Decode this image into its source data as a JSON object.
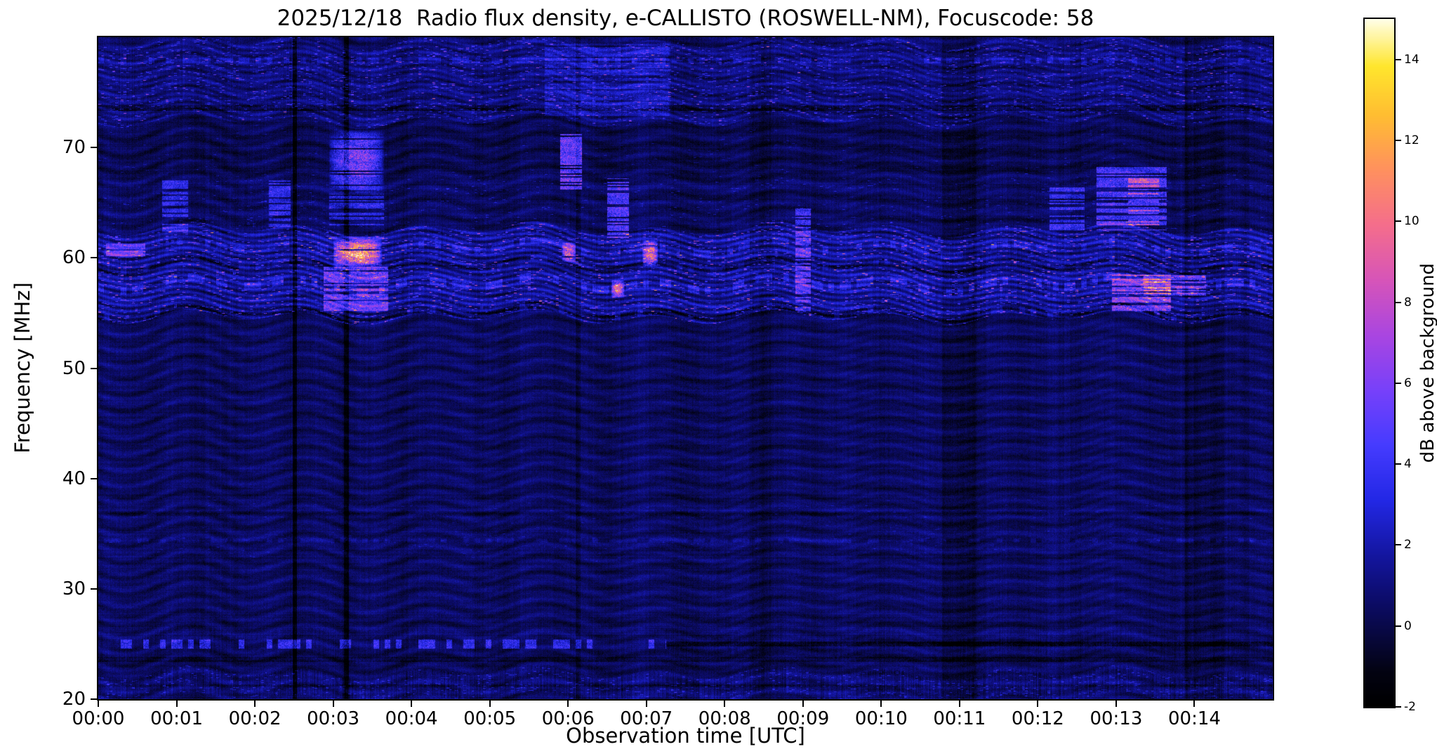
{
  "figure": {
    "background": "#ffffff"
  },
  "chart_data": {
    "type": "heatmap",
    "title": "2025/12/18  Radio flux density, e-CALLISTO (ROSWELL-NM), Focuscode: 58",
    "xlabel": "Observation time [UTC]",
    "ylabel": "Frequency [MHz]",
    "x_ticks": [
      "00:00",
      "00:01",
      "00:02",
      "00:03",
      "00:04",
      "00:05",
      "00:06",
      "00:07",
      "00:08",
      "00:09",
      "00:10",
      "00:11",
      "00:12",
      "00:13",
      "00:14"
    ],
    "x_range_minutes": [
      0,
      15
    ],
    "y_ticks": [
      20,
      30,
      40,
      50,
      60,
      70
    ],
    "y_range_mhz": [
      20,
      80
    ],
    "grid": false,
    "colorbar": {
      "label": "dB above background",
      "ticks": [
        -2,
        0,
        2,
        4,
        6,
        8,
        10,
        12,
        14
      ],
      "range": [
        -2,
        15
      ],
      "colormap_stops": [
        [
          0.0,
          0,
          0,
          0
        ],
        [
          0.05,
          3,
          3,
          18
        ],
        [
          0.1,
          8,
          8,
          60
        ],
        [
          0.16,
          13,
          13,
          110
        ],
        [
          0.22,
          20,
          22,
          160
        ],
        [
          0.3,
          35,
          40,
          230
        ],
        [
          0.38,
          70,
          60,
          255
        ],
        [
          0.46,
          120,
          65,
          250
        ],
        [
          0.54,
          170,
          70,
          225
        ],
        [
          0.62,
          215,
          85,
          185
        ],
        [
          0.7,
          245,
          110,
          140
        ],
        [
          0.78,
          255,
          145,
          95
        ],
        [
          0.86,
          255,
          190,
          50
        ],
        [
          0.93,
          255,
          230,
          45
        ],
        [
          1.0,
          255,
          255,
          235
        ]
      ]
    },
    "spectrogram": {
      "seed": 7,
      "background_db": 0.4,
      "bands": [
        {
          "f": [
            54.6,
            62.6
          ],
          "boost": 1.05,
          "texture": 0.95,
          "colnoise": 0.5,
          "speckles": [
            [
              0.05,
              3.5
            ],
            [
              0.01,
              6.5
            ]
          ]
        },
        {
          "f": [
            62.6,
            67.4
          ],
          "boost": 0.0,
          "colnoise": 0.3,
          "speckles": [
            [
              0.015,
              2.0
            ]
          ]
        },
        {
          "f": [
            67.4,
            72.4
          ],
          "boost": -0.3,
          "speckles": [
            [
              0.008,
              1.5
            ]
          ]
        },
        {
          "f": [
            72.4,
            79.6
          ],
          "boost": 0.55,
          "texture": 0.5,
          "colnoise": 0.4,
          "speckles": [
            [
              0.05,
              2.8
            ],
            [
              0.008,
              5.0
            ]
          ]
        },
        {
          "f": [
            20.0,
            22.4
          ],
          "boost": 0.35,
          "colnoise": 1.1,
          "speckles": [
            [
              0.05,
              2.2
            ]
          ]
        },
        {
          "f": [
            24.0,
            26.2
          ],
          "boost": 0.1,
          "colnoise": 0.5
        },
        {
          "f": [
            33.0,
            38.0
          ],
          "boost": 0.15,
          "speckles": [
            [
              0.01,
              1.2
            ]
          ]
        }
      ],
      "hlines": [
        {
          "f": 25.0,
          "hw": 0.4,
          "t": [
            0,
            7.25
          ],
          "amp": 3.0,
          "dash": 0.5,
          "wavy": false
        },
        {
          "f": 25.0,
          "hw": 0.22,
          "t": [
            7.25,
            15
          ],
          "amp": -1.4,
          "dash": 1.0,
          "wavy": false
        },
        {
          "f": 23.6,
          "hw": 0.2,
          "t": [
            0,
            15
          ],
          "amp": -0.9,
          "dash": 1.0,
          "wavy": false
        },
        {
          "f": 73.6,
          "hw": 0.25,
          "t": [
            0,
            15
          ],
          "amp": -1.1,
          "dash": 1.0,
          "wavy": false
        },
        {
          "f": 36.8,
          "hw": 0.2,
          "t": [
            0,
            15
          ],
          "amp": -0.7,
          "dash": 1.0,
          "wavy": false
        },
        {
          "f": 57.6,
          "hw": 0.35,
          "t": [
            0,
            15
          ],
          "amp": 1.6,
          "dash": 0.45,
          "wavy": true
        },
        {
          "f": 60.9,
          "hw": 0.3,
          "t": [
            0,
            15
          ],
          "amp": 1.3,
          "dash": 0.4,
          "wavy": true
        },
        {
          "f": 55.0,
          "hw": 0.3,
          "t": [
            0,
            15
          ],
          "amp": -1.2,
          "dash": 0.9,
          "wavy": true
        },
        {
          "f": 59.3,
          "hw": 0.25,
          "t": [
            0,
            15
          ],
          "amp": -1.0,
          "dash": 0.8,
          "wavy": true
        },
        {
          "f": 77.9,
          "hw": 0.25,
          "t": [
            0,
            15
          ],
          "amp": 1.2,
          "dash": 0.45,
          "wavy": false
        },
        {
          "f": 21.2,
          "hw": 0.15,
          "t": [
            0,
            15
          ],
          "amp": -0.8,
          "dash": 1.0,
          "wavy": false
        },
        {
          "f": 34.4,
          "hw": 0.18,
          "t": [
            0,
            15
          ],
          "amp": 0.8,
          "dash": 0.5,
          "wavy": false
        }
      ],
      "bursts": [
        {
          "t": [
            2.95,
            3.65
          ],
          "f": [
            65.8,
            71.6
          ],
          "amp": 7.0,
          "row_p": 0.8,
          "soft": true
        },
        {
          "t": [
            3.0,
            3.62
          ],
          "f": [
            59.2,
            61.7
          ],
          "amp": 12.0,
          "row_p": 0.95,
          "soft": true
        },
        {
          "t": [
            2.88,
            3.7
          ],
          "f": [
            55.2,
            59.2
          ],
          "amp": 4.5,
          "row_p": 0.7,
          "soft": false
        },
        {
          "t": [
            2.95,
            3.65
          ],
          "f": [
            61.7,
            65.8
          ],
          "amp": 3.0,
          "row_p": 0.55,
          "soft": false
        },
        {
          "t": [
            5.9,
            6.18
          ],
          "f": [
            66.2,
            71.2
          ],
          "amp": 6.0,
          "row_p": 0.8,
          "soft": false
        },
        {
          "t": [
            5.92,
            6.1
          ],
          "f": [
            59.6,
            61.4
          ],
          "amp": 8.5,
          "row_p": 0.9,
          "soft": true
        },
        {
          "t": [
            6.5,
            6.78
          ],
          "f": [
            61.6,
            67.2
          ],
          "amp": 5.0,
          "row_p": 0.7,
          "soft": false
        },
        {
          "t": [
            6.55,
            6.72
          ],
          "f": [
            56.4,
            58.0
          ],
          "amp": 9.5,
          "row_p": 0.95,
          "soft": true
        },
        {
          "t": [
            6.95,
            7.15
          ],
          "f": [
            59.2,
            61.6
          ],
          "amp": 9.0,
          "row_p": 0.9,
          "soft": true
        },
        {
          "t": [
            0.82,
            1.15
          ],
          "f": [
            62.4,
            67.0
          ],
          "amp": 3.2,
          "row_p": 0.55,
          "soft": false
        },
        {
          "t": [
            2.18,
            2.46
          ],
          "f": [
            62.4,
            67.0
          ],
          "amp": 3.4,
          "row_p": 0.55,
          "soft": false
        },
        {
          "t": [
            8.9,
            9.1
          ],
          "f": [
            55.2,
            64.5
          ],
          "amp": 4.2,
          "row_p": 0.6,
          "soft": false
        },
        {
          "t": [
            12.15,
            12.6
          ],
          "f": [
            62.5,
            67.5
          ],
          "amp": 3.6,
          "row_p": 0.5,
          "soft": false
        },
        {
          "t": [
            12.75,
            13.65
          ],
          "f": [
            62.5,
            68.2
          ],
          "amp": 4.4,
          "row_p": 0.6,
          "soft": false
        },
        {
          "t": [
            12.95,
            13.7
          ],
          "f": [
            55.1,
            58.6
          ],
          "amp": 5.5,
          "row_p": 0.65,
          "soft": false
        },
        {
          "t": [
            13.35,
            14.15
          ],
          "f": [
            56.6,
            58.4
          ],
          "amp": 4.5,
          "row_p": 0.6,
          "soft": false
        },
        {
          "t": [
            0.1,
            0.6
          ],
          "f": [
            59.9,
            61.4
          ],
          "amp": 3.8,
          "row_p": 0.6,
          "soft": false
        },
        {
          "t": [
            5.7,
            7.3
          ],
          "f": [
            72.8,
            79.4
          ],
          "amp": 1.7,
          "row_p": 0.8,
          "soft": false
        },
        {
          "t": [
            13.15,
            13.55
          ],
          "f": [
            62.8,
            67.2
          ],
          "amp": 4.5,
          "row_p": 0.6,
          "soft": false
        }
      ],
      "dark_columns": [
        {
          "t": [
            2.48,
            2.54
          ],
          "amp": -1.7
        },
        {
          "t": [
            3.14,
            3.2
          ],
          "amp": -1.5
        },
        {
          "t": [
            6.1,
            6.16
          ],
          "amp": -0.8
        },
        {
          "t": [
            8.32,
            8.6
          ],
          "amp": -0.4
        },
        {
          "t": [
            10.78,
            11.22
          ],
          "amp": -0.65
        },
        {
          "t": [
            13.88,
            14.38
          ],
          "amp": -0.65
        }
      ]
    }
  }
}
